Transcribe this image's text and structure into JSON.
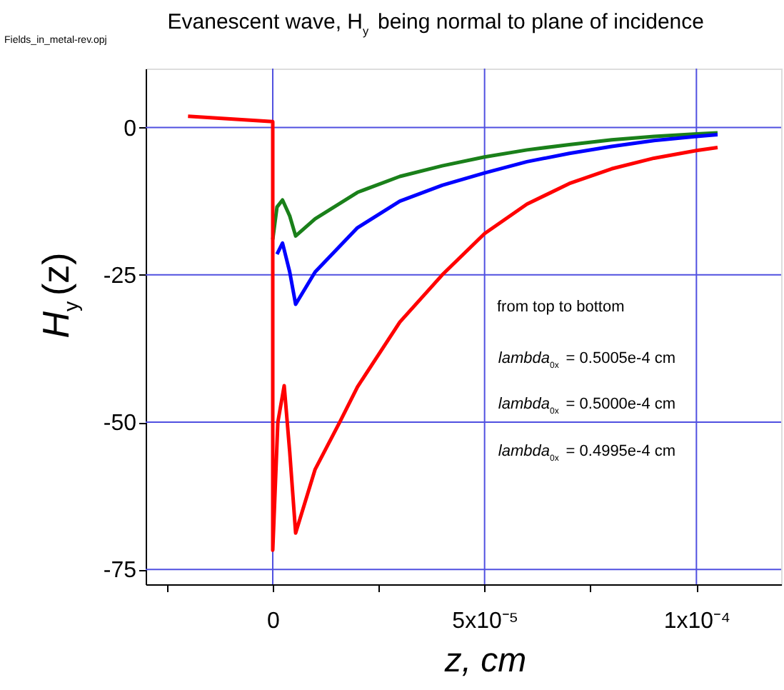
{
  "chart_data": {
    "type": "line",
    "title": "Evanescent wave, H$_{y}$ being normal to plane of incidence",
    "xlabel": "z, cm",
    "ylabel": "H$_{y}$(z)",
    "annotations": [
      "Fields_in_metal-rev.opj",
      "from top to bottom",
      "lambda$_{0x}$ = 0.5005e-4 cm",
      "lambda$_{0x}$ = 0.5000e-4 cm",
      "lambda$_{0x}$ = 0.4995e-4 cm"
    ],
    "xlim": [
      -3e-05,
      0.00012
    ],
    "ylim": [
      -77.5,
      10
    ],
    "xticks": [
      {
        "value": -2.5e-05,
        "label": null
      },
      0,
      {
        "value": 2.5e-05,
        "label": null
      },
      {
        "value": 5e-05,
        "label": "5x10⁻⁵"
      },
      {
        "value": 7.5e-05,
        "label": null
      },
      {
        "value": 0.0001,
        "label": "1x10⁻⁴"
      }
    ],
    "yticks": [
      -75,
      -50,
      -25,
      0
    ],
    "grid": true,
    "marker": "none",
    "line_style": "solid",
    "series": [
      {
        "color": "#1a801a",
        "x": [
          0,
          1e-06,
          2.3e-06,
          4e-06,
          5.4e-06,
          1e-05,
          2e-05,
          3e-05,
          4e-05,
          5e-05,
          6e-05,
          7e-05,
          8e-05,
          9e-05,
          0.0001,
          0.000105
        ],
        "values": [
          -19,
          -13.5,
          -12.3,
          -15,
          -18.4,
          -15.5,
          -11,
          -8.3,
          -6.5,
          -5,
          -3.8,
          -2.9,
          -2.1,
          -1.5,
          -1.1,
          -0.9
        ]
      },
      {
        "color": "#0000ff",
        "x": [
          1e-06,
          2.3e-06,
          4e-06,
          5.4e-06,
          1e-05,
          2e-05,
          3e-05,
          4e-05,
          5e-05,
          6e-05,
          7e-05,
          8e-05,
          9e-05,
          0.0001,
          0.000105
        ],
        "values": [
          -21.5,
          -19.6,
          -24.5,
          -30,
          -24.5,
          -17,
          -12.5,
          -9.8,
          -7.7,
          -5.8,
          -4.4,
          -3.2,
          -2.2,
          -1.5,
          -1.2
        ]
      },
      {
        "color": "#ff0000",
        "x": [
          -2e-05,
          0,
          0,
          1.2e-06,
          2.7e-06,
          4e-06,
          5.4e-06,
          1e-05,
          1.58e-05,
          2e-05,
          3e-05,
          4e-05,
          5e-05,
          6e-05,
          7e-05,
          8e-05,
          9e-05,
          0.0001,
          0.000105
        ],
        "values": [
          1.9,
          1,
          -71.7,
          -50,
          -43.8,
          -55,
          -68.8,
          -58,
          -50,
          -44,
          -33,
          -25,
          -18,
          -13,
          -9.5,
          -7,
          -5.2,
          -3.9,
          -3.4
        ]
      }
    ]
  }
}
